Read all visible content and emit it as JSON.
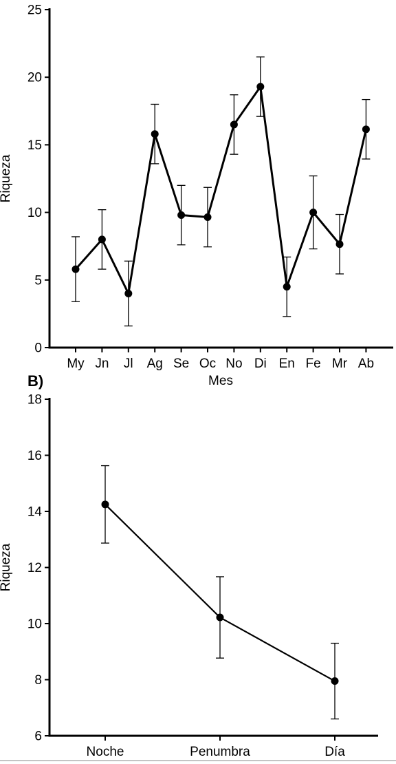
{
  "chart_data": [
    {
      "type": "line",
      "panel_label": "",
      "xlabel": "Mes",
      "ylabel": "Riqueza",
      "categories": [
        "My",
        "Jn",
        "Jl",
        "Ag",
        "Se",
        "Oc",
        "No",
        "Di",
        "En",
        "Fe",
        "Mr",
        "Ab"
      ],
      "values": [
        5.8,
        8.0,
        4.0,
        15.8,
        9.8,
        9.65,
        16.5,
        19.3,
        4.5,
        10.0,
        7.65,
        16.15
      ],
      "errors": [
        2.4,
        2.2,
        2.4,
        2.2,
        2.2,
        2.2,
        2.2,
        2.2,
        2.2,
        2.7,
        2.2,
        2.2
      ],
      "ylim": [
        0,
        25
      ],
      "yticks": [
        0,
        5,
        10,
        15,
        20,
        25
      ],
      "grid": false,
      "color": "#000000"
    },
    {
      "type": "line",
      "panel_label": "B)",
      "xlabel": "",
      "ylabel": "Riqueza",
      "categories": [
        "Noche",
        "Penumbra",
        "Día"
      ],
      "values": [
        14.25,
        10.22,
        7.95
      ],
      "errors": [
        1.38,
        1.45,
        1.35
      ],
      "ylim": [
        6,
        18
      ],
      "yticks": [
        6,
        8,
        10,
        12,
        14,
        16,
        18
      ],
      "grid": false,
      "color": "#000000"
    }
  ]
}
